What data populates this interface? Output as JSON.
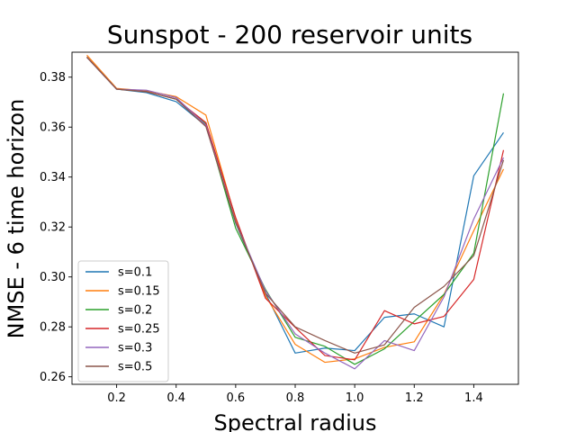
{
  "chart_data": {
    "type": "line",
    "title": "Sunspot - 200 reservoir units",
    "xlabel": "Spectral radius",
    "ylabel": "NMSE - 6 time horizon",
    "xlim": [
      0.05,
      1.55
    ],
    "ylim": [
      0.257,
      0.39
    ],
    "x_ticks": [
      0.2,
      0.4,
      0.6,
      0.8,
      1.0,
      1.2,
      1.4
    ],
    "x_tick_labels": [
      "0.2",
      "0.4",
      "0.6",
      "0.8",
      "1.0",
      "1.2",
      "1.4"
    ],
    "y_ticks": [
      0.26,
      0.28,
      0.3,
      0.32,
      0.34,
      0.36,
      0.38
    ],
    "y_tick_labels": [
      "0.26",
      "0.28",
      "0.30",
      "0.32",
      "0.34",
      "0.36",
      "0.38"
    ],
    "grid": false,
    "legend_position": "lower-left",
    "x": [
      0.1,
      0.2,
      0.3,
      0.4,
      0.5,
      0.6,
      0.7,
      0.8,
      0.9,
      1.0,
      1.1,
      1.2,
      1.3,
      1.4,
      1.5
    ],
    "series": [
      {
        "name": "s=0.1",
        "color": "#1f77b4",
        "values": [
          0.388,
          0.3752,
          0.3738,
          0.3702,
          0.3605,
          0.3215,
          0.2935,
          0.2695,
          0.2715,
          0.2705,
          0.2838,
          0.2852,
          0.28,
          0.3405,
          0.3578
        ]
      },
      {
        "name": "s=0.15",
        "color": "#ff7f0e",
        "values": [
          0.3888,
          0.3755,
          0.3745,
          0.3722,
          0.3648,
          0.3232,
          0.2925,
          0.273,
          0.2658,
          0.2672,
          0.2718,
          0.274,
          0.293,
          0.3185,
          0.3432
        ]
      },
      {
        "name": "s=0.2",
        "color": "#2ca02c",
        "values": [
          0.388,
          0.3752,
          0.3742,
          0.3712,
          0.3612,
          0.3195,
          0.295,
          0.2758,
          0.2722,
          0.265,
          0.2712,
          0.2822,
          0.293,
          0.3095,
          0.3735
        ]
      },
      {
        "name": "s=0.25",
        "color": "#d62728",
        "values": [
          0.388,
          0.3752,
          0.3742,
          0.3712,
          0.3618,
          0.3238,
          0.2915,
          0.2798,
          0.2685,
          0.2668,
          0.2865,
          0.2812,
          0.2842,
          0.299,
          0.3508
        ]
      },
      {
        "name": "s=0.3",
        "color": "#9467bd",
        "values": [
          0.388,
          0.3752,
          0.3748,
          0.3718,
          0.3608,
          0.322,
          0.2945,
          0.2772,
          0.2695,
          0.2632,
          0.2745,
          0.2705,
          0.292,
          0.3232,
          0.3478
        ]
      },
      {
        "name": "s=0.5",
        "color": "#8c564b",
        "values": [
          0.388,
          0.3752,
          0.3742,
          0.3712,
          0.3602,
          0.3218,
          0.2935,
          0.28,
          0.2745,
          0.2695,
          0.2728,
          0.2878,
          0.2962,
          0.3085,
          0.3468
        ]
      }
    ]
  }
}
